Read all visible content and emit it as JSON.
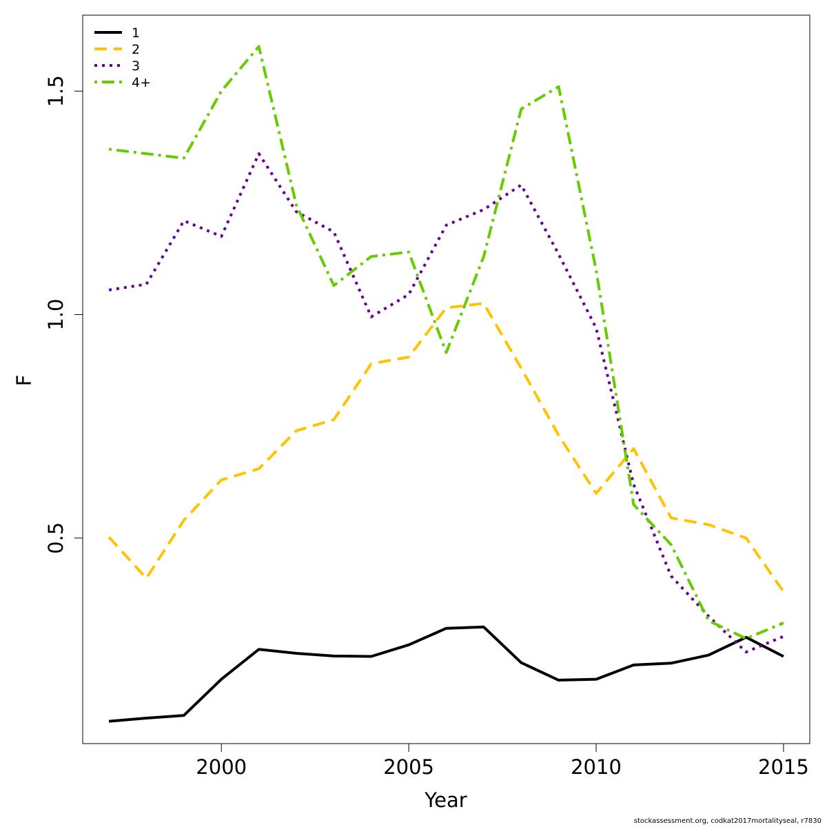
{
  "chart_data": {
    "type": "line",
    "xlabel": "Year",
    "ylabel": "F",
    "xlim": [
      1996.3,
      2015.7
    ],
    "ylim": [
      0.04,
      1.67
    ],
    "x_ticks": [
      2000,
      2005,
      2010,
      2015
    ],
    "y_ticks": [
      0.5,
      1.0,
      1.5
    ],
    "x_tick_labels": [
      "2000",
      "2005",
      "2010",
      "2015"
    ],
    "y_tick_labels": [
      "0.5",
      "1.0",
      "1.5"
    ],
    "grid": false,
    "legend_position": "top-left",
    "x": [
      1997,
      1998,
      1999,
      2000,
      2001,
      2002,
      2003,
      2004,
      2005,
      2006,
      2007,
      2008,
      2009,
      2010,
      2011,
      2012,
      2013,
      2014,
      2015
    ],
    "series": [
      {
        "name": "1",
        "color": "#000000",
        "dash": "solid",
        "values": [
          0.09,
          0.097,
          0.103,
          0.184,
          0.251,
          0.242,
          0.236,
          0.235,
          0.261,
          0.298,
          0.301,
          0.221,
          0.182,
          0.184,
          0.216,
          0.22,
          0.238,
          0.278,
          0.235
        ]
      },
      {
        "name": "2",
        "color": "#FFC300",
        "dash": "dashed",
        "values": [
          0.502,
          0.41,
          0.54,
          0.63,
          0.655,
          0.74,
          0.765,
          0.89,
          0.905,
          1.015,
          1.025,
          0.88,
          0.73,
          0.6,
          0.7,
          0.545,
          0.53,
          0.5,
          0.38
        ]
      },
      {
        "name": "3",
        "color": "#66009A",
        "dash": "dotted",
        "values": [
          1.055,
          1.068,
          1.21,
          1.175,
          1.36,
          1.23,
          1.185,
          0.995,
          1.045,
          1.2,
          1.235,
          1.29,
          1.135,
          0.97,
          0.62,
          0.415,
          0.325,
          0.245,
          0.28
        ]
      },
      {
        "name": "4+",
        "color": "#66CC00",
        "dash": "dotdash",
        "values": [
          1.37,
          1.36,
          1.35,
          1.5,
          1.6,
          1.245,
          1.065,
          1.13,
          1.14,
          0.915,
          1.13,
          1.46,
          1.51,
          1.1,
          0.575,
          0.485,
          0.315,
          0.275,
          0.31
        ]
      }
    ]
  },
  "footer": "stockassessment.org, codkat2017mortalityseal, r7830"
}
